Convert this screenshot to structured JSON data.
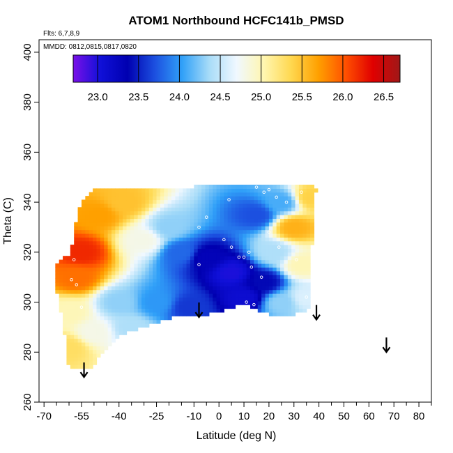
{
  "chart_data": {
    "type": "heatmap",
    "title": "ATOM1 Northbound HCFC141b_PMSD",
    "flights_label": "Flts: 6,7,8,9",
    "dates_label": "MMDD: 0812,0815,0817,0820",
    "xlabel": "Latitude (deg N)",
    "ylabel": "Theta (C)",
    "xlim": [
      -72,
      85
    ],
    "ylim": [
      260,
      405
    ],
    "x_ticks": [
      -70,
      -55,
      -40,
      -25,
      -10,
      0,
      10,
      20,
      30,
      40,
      50,
      60,
      70,
      80
    ],
    "x_tick_labels": [
      "-70",
      "-55",
      "-40",
      "-25",
      "-10",
      "0",
      "10",
      "20",
      "30",
      "40",
      "50",
      "60",
      "70",
      "80"
    ],
    "x_minor_ticks": [
      -65,
      -60,
      -50,
      -45,
      -35,
      -30,
      -20,
      -15,
      -5,
      5,
      15,
      25,
      35,
      45,
      55,
      65,
      75,
      85
    ],
    "y_ticks": [
      260,
      280,
      300,
      320,
      340,
      360,
      380,
      400
    ],
    "y_tick_labels": [
      "260",
      "280",
      "300",
      "320",
      "340",
      "360",
      "380",
      "400"
    ],
    "colorbar": {
      "range": [
        22.7,
        26.7
      ],
      "ticks": [
        23.0,
        23.5,
        24.0,
        24.5,
        25.0,
        25.5,
        26.0,
        26.5
      ],
      "tick_labels": [
        "23.0",
        "23.5",
        "24.0",
        "24.5",
        "25.0",
        "25.5",
        "26.0",
        "26.5"
      ],
      "colors": [
        "#7a10e8",
        "#1010d8",
        "#0000b0",
        "#1c50e0",
        "#30a0f8",
        "#a8dcf8",
        "#f0f8ff",
        "#fff6b0",
        "#ffd850",
        "#ffa000",
        "#ff5000",
        "#e00000",
        "#a01818"
      ]
    },
    "field_points": [
      {
        "lat": -55,
        "theta": 320,
        "value": 26.2
      },
      {
        "lat": -57,
        "theta": 310,
        "value": 25.9
      },
      {
        "lat": -48,
        "theta": 335,
        "value": 25.7
      },
      {
        "lat": -38,
        "theta": 340,
        "value": 25.5
      },
      {
        "lat": -30,
        "theta": 325,
        "value": 24.8
      },
      {
        "lat": -20,
        "theta": 330,
        "value": 24.3
      },
      {
        "lat": -15,
        "theta": 320,
        "value": 23.8
      },
      {
        "lat": -5,
        "theta": 318,
        "value": 23.3
      },
      {
        "lat": 5,
        "theta": 312,
        "value": 23.0
      },
      {
        "lat": 10,
        "theta": 302,
        "value": 23.1
      },
      {
        "lat": 18,
        "theta": 308,
        "value": 23.4
      },
      {
        "lat": 15,
        "theta": 335,
        "value": 23.7
      },
      {
        "lat": 25,
        "theta": 340,
        "value": 24.1
      },
      {
        "lat": 30,
        "theta": 330,
        "value": 25.6
      },
      {
        "lat": 33,
        "theta": 315,
        "value": 25.0
      },
      {
        "lat": 35,
        "theta": 302,
        "value": 24.6
      },
      {
        "lat": 37,
        "theta": 342,
        "value": 25.4
      },
      {
        "lat": -40,
        "theta": 300,
        "value": 24.3
      },
      {
        "lat": -50,
        "theta": 288,
        "value": 24.8
      },
      {
        "lat": -60,
        "theta": 282,
        "value": 25.3
      },
      {
        "lat": -60,
        "theta": 296,
        "value": 25.0
      },
      {
        "lat": -25,
        "theta": 300,
        "value": 24.0
      },
      {
        "lat": -35,
        "theta": 290,
        "value": 24.4
      },
      {
        "lat": -12,
        "theta": 298,
        "value": 23.6
      },
      {
        "lat": 25,
        "theta": 300,
        "value": 24.3
      },
      {
        "lat": 22,
        "theta": 320,
        "value": 24.4
      }
    ],
    "samples": [
      [
        -59,
        309
      ],
      [
        -58,
        317
      ],
      [
        -57,
        307
      ],
      [
        -55,
        298
      ],
      [
        -8,
        330
      ],
      [
        -8,
        315
      ],
      [
        -5,
        334
      ],
      [
        2,
        325
      ],
      [
        5,
        322
      ],
      [
        8,
        318
      ],
      [
        10,
        318
      ],
      [
        12,
        320
      ],
      [
        13,
        314
      ],
      [
        11,
        300
      ],
      [
        17,
        310
      ],
      [
        15,
        346
      ],
      [
        18,
        344
      ],
      [
        20,
        345
      ],
      [
        23,
        342
      ],
      [
        27,
        340
      ],
      [
        33,
        344
      ],
      [
        20,
        328
      ],
      [
        24,
        322
      ],
      [
        31,
        317
      ],
      [
        35,
        302
      ],
      [
        38,
        296
      ],
      [
        8,
        298
      ],
      [
        14,
        299
      ],
      [
        4,
        341
      ]
    ],
    "arrows": [
      {
        "lat": -54,
        "theta": 270
      },
      {
        "lat": -8,
        "theta": 294
      },
      {
        "lat": 39,
        "theta": 293
      },
      {
        "lat": 67,
        "theta": 280
      }
    ]
  }
}
